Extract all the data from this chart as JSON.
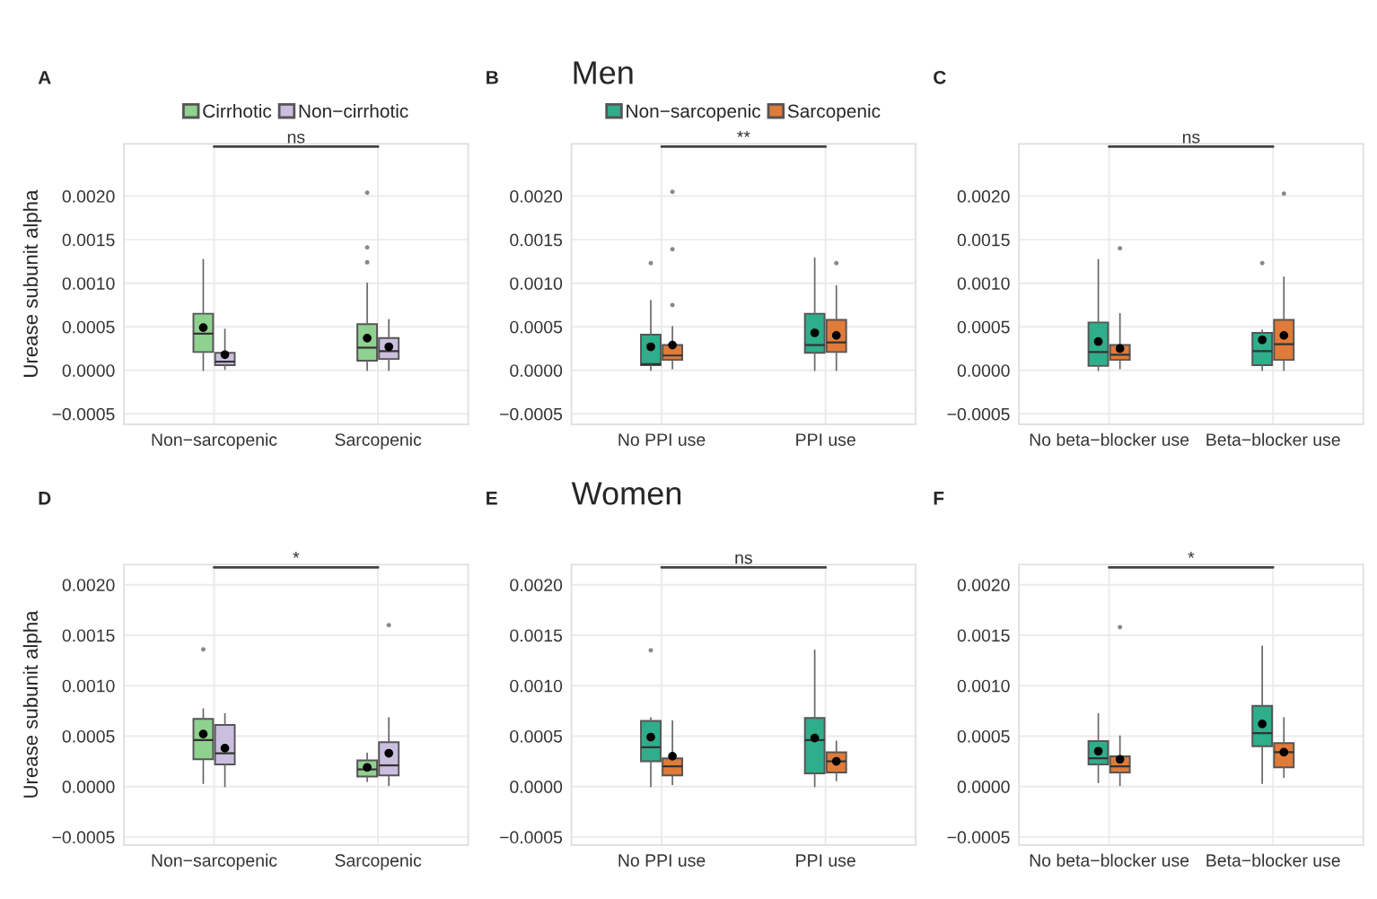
{
  "chart_data": [
    {
      "type": "box",
      "ylabel": "Urease subunit alpha",
      "categories": [
        "Non−sarcopenic",
        "Sarcopenic"
      ],
      "ylim": [
        -0.00062,
        0.0026
      ],
      "yticks": [
        {
          "value": -0.0005,
          "label": "−0.0005"
        },
        {
          "value": 0,
          "label": "0.0000"
        },
        {
          "value": 0.0005,
          "label": "0.0005"
        },
        {
          "value": 0.001,
          "label": "0.0010"
        },
        {
          "value": 0.0015,
          "label": "0.0015"
        },
        {
          "value": 0.002,
          "label": "0.0020"
        }
      ],
      "grid": true,
      "legend": "top",
      "annotations": [
        "A",
        "ns"
      ],
      "series": [
        {
          "name": "Cirrhotic",
          "color": "#8fd18f",
          "boxes": [
            {
              "low": 0.0,
              "q1": 0.00021,
              "median": 0.00042,
              "q3": 0.00065,
              "high": 0.00127,
              "mean": 0.00049
            },
            {
              "low": 0.0,
              "q1": 0.00011,
              "median": 0.00026,
              "q3": 0.00053,
              "high": 0.001,
              "mean": 0.00037,
              "outliers": [
                0.00204,
                0.00141,
                0.00124
              ]
            }
          ]
        },
        {
          "name": "Non−cirrhotic",
          "color": "#cbbfe0",
          "boxes": [
            {
              "low": 1e-05,
              "q1": 6e-05,
              "median": 0.0001,
              "q3": 0.0002,
              "high": 0.00047,
              "mean": 0.00018
            },
            {
              "low": 0.0,
              "q1": 0.00013,
              "median": 0.00022,
              "q3": 0.00037,
              "high": 0.00058,
              "mean": 0.00027
            }
          ]
        }
      ]
    },
    {
      "type": "box",
      "title": "Men",
      "categories": [
        "No PPI use",
        "PPI use"
      ],
      "ylim": [
        -0.00062,
        0.0026
      ],
      "yticks": [
        {
          "value": -0.0005,
          "label": "−0.0005"
        },
        {
          "value": 0,
          "label": "0.0000"
        },
        {
          "value": 0.0005,
          "label": "0.0005"
        },
        {
          "value": 0.001,
          "label": "0.0010"
        },
        {
          "value": 0.0015,
          "label": "0.0015"
        },
        {
          "value": 0.002,
          "label": "0.0020"
        }
      ],
      "grid": true,
      "legend": "top",
      "annotations": [
        "B",
        "**"
      ],
      "series": [
        {
          "name": "Non−sarcopenic",
          "color": "#2eae8a",
          "boxes": [
            {
              "low": 0.0,
              "q1": 6e-05,
              "median": 7e-05,
              "q3": 0.00041,
              "high": 0.0008,
              "mean": 0.00027,
              "outliers": [
                0.00123
              ]
            },
            {
              "low": 0.0,
              "q1": 0.0002,
              "median": 0.00029,
              "q3": 0.00065,
              "high": 0.00129,
              "mean": 0.00043
            }
          ]
        },
        {
          "name": "Sarcopenic",
          "color": "#e07b39",
          "boxes": [
            {
              "low": 2e-05,
              "q1": 0.00012,
              "median": 0.00017,
              "q3": 0.00029,
              "high": 0.0005,
              "mean": 0.00029,
              "outliers": [
                0.00205,
                0.00139,
                0.00075
              ]
            },
            {
              "low": 0.0,
              "q1": 0.00021,
              "median": 0.00032,
              "q3": 0.00058,
              "high": 0.00097,
              "mean": 0.0004,
              "outliers": [
                0.00123
              ]
            }
          ]
        }
      ]
    },
    {
      "type": "box",
      "categories": [
        "No beta−blocker use",
        "Beta−blocker use"
      ],
      "ylim": [
        -0.00062,
        0.0026
      ],
      "yticks": [
        {
          "value": -0.0005,
          "label": "−0.0005"
        },
        {
          "value": 0,
          "label": "0.0000"
        },
        {
          "value": 0.0005,
          "label": "0.0005"
        },
        {
          "value": 0.001,
          "label": "0.0010"
        },
        {
          "value": 0.0015,
          "label": "0.0015"
        },
        {
          "value": 0.002,
          "label": "0.0020"
        }
      ],
      "grid": true,
      "annotations": [
        "C",
        "ns"
      ],
      "series": [
        {
          "color": "#2eae8a",
          "boxes": [
            {
              "low": 0.0,
              "q1": 5e-05,
              "median": 0.00021,
              "q3": 0.00055,
              "high": 0.00127,
              "mean": 0.00033
            },
            {
              "low": 0.0,
              "q1": 6e-05,
              "median": 0.00022,
              "q3": 0.00043,
              "high": 0.00046,
              "mean": 0.00035,
              "outliers": [
                0.00123
              ]
            }
          ]
        },
        {
          "color": "#e07b39",
          "boxes": [
            {
              "low": 2e-05,
              "q1": 0.00012,
              "median": 0.00018,
              "q3": 0.00029,
              "high": 0.00065,
              "mean": 0.00025,
              "outliers": [
                0.0014
              ]
            },
            {
              "low": 0.0,
              "q1": 0.00012,
              "median": 0.0003,
              "q3": 0.00058,
              "high": 0.00107,
              "mean": 0.0004,
              "outliers": [
                0.00203
              ]
            }
          ]
        }
      ]
    },
    {
      "type": "box",
      "ylabel": "Urease subunit alpha",
      "categories": [
        "Non−sarcopenic",
        "Sarcopenic"
      ],
      "ylim": [
        -0.00058,
        0.0022
      ],
      "yticks": [
        {
          "value": -0.0005,
          "label": "−0.0005"
        },
        {
          "value": 0,
          "label": "0.0000"
        },
        {
          "value": 0.0005,
          "label": "0.0005"
        },
        {
          "value": 0.001,
          "label": "0.0010"
        },
        {
          "value": 0.0015,
          "label": "0.0015"
        },
        {
          "value": 0.002,
          "label": "0.0020"
        }
      ],
      "grid": true,
      "annotations": [
        "D",
        "*"
      ],
      "series": [
        {
          "color": "#8fd18f",
          "boxes": [
            {
              "low": 3e-05,
              "q1": 0.00027,
              "median": 0.00046,
              "q3": 0.00067,
              "high": 0.00077,
              "mean": 0.00052,
              "outliers": [
                0.00136
              ]
            },
            {
              "low": 5e-05,
              "q1": 0.0001,
              "median": 0.00017,
              "q3": 0.00026,
              "high": 0.00033,
              "mean": 0.00019
            }
          ]
        },
        {
          "color": "#cbbfe0",
          "boxes": [
            {
              "low": 0.0,
              "q1": 0.00022,
              "median": 0.00033,
              "q3": 0.00061,
              "high": 0.00072,
              "mean": 0.00038
            },
            {
              "low": 1e-05,
              "q1": 0.00011,
              "median": 0.00021,
              "q3": 0.00044,
              "high": 0.00068,
              "mean": 0.00033,
              "outliers": [
                0.0016
              ]
            }
          ]
        }
      ]
    },
    {
      "type": "box",
      "title": "Women",
      "categories": [
        "No PPI use",
        "PPI use"
      ],
      "ylim": [
        -0.00058,
        0.0022
      ],
      "yticks": [
        {
          "value": -0.0005,
          "label": "−0.0005"
        },
        {
          "value": 0,
          "label": "0.0000"
        },
        {
          "value": 0.0005,
          "label": "0.0005"
        },
        {
          "value": 0.001,
          "label": "0.0010"
        },
        {
          "value": 0.0015,
          "label": "0.0015"
        },
        {
          "value": 0.002,
          "label": "0.0020"
        }
      ],
      "grid": true,
      "annotations": [
        "E",
        "ns"
      ],
      "series": [
        {
          "color": "#2eae8a",
          "boxes": [
            {
              "low": 0.0,
              "q1": 0.00025,
              "median": 0.00039,
              "q3": 0.00065,
              "high": 0.00068,
              "mean": 0.00049,
              "outliers": [
                0.00135
              ]
            },
            {
              "low": 0.0,
              "q1": 0.00013,
              "median": 0.00046,
              "q3": 0.00068,
              "high": 0.00135,
              "mean": 0.00048
            }
          ]
        },
        {
          "color": "#e07b39",
          "boxes": [
            {
              "low": 2e-05,
              "q1": 0.00011,
              "median": 0.0002,
              "q3": 0.00028,
              "high": 0.00065,
              "mean": 0.0003
            },
            {
              "low": 6e-05,
              "q1": 0.00014,
              "median": 0.00025,
              "q3": 0.00034,
              "high": 0.00045,
              "mean": 0.00025
            }
          ]
        }
      ]
    },
    {
      "type": "box",
      "categories": [
        "No beta−blocker use",
        "Beta−blocker use"
      ],
      "ylim": [
        -0.00058,
        0.0022
      ],
      "yticks": [
        {
          "value": -0.0005,
          "label": "−0.0005"
        },
        {
          "value": 0,
          "label": "0.0000"
        },
        {
          "value": 0.0005,
          "label": "0.0005"
        },
        {
          "value": 0.001,
          "label": "0.0010"
        },
        {
          "value": 0.0015,
          "label": "0.0015"
        },
        {
          "value": 0.002,
          "label": "0.0020"
        }
      ],
      "grid": true,
      "annotations": [
        "F",
        "*"
      ],
      "series": [
        {
          "color": "#2eae8a",
          "boxes": [
            {
              "low": 4e-05,
              "q1": 0.00022,
              "median": 0.00028,
              "q3": 0.00045,
              "high": 0.00072,
              "mean": 0.00035
            },
            {
              "low": 3e-05,
              "q1": 0.0004,
              "median": 0.00053,
              "q3": 0.0008,
              "high": 0.00139,
              "mean": 0.00062
            }
          ]
        },
        {
          "color": "#e07b39",
          "boxes": [
            {
              "low": 1e-05,
              "q1": 0.00014,
              "median": 0.0002,
              "q3": 0.0003,
              "high": 0.0005,
              "mean": 0.00027,
              "outliers": [
                0.00158
              ]
            },
            {
              "low": 9e-05,
              "q1": 0.00019,
              "median": 0.00034,
              "q3": 0.00043,
              "high": 0.00068,
              "mean": 0.00034
            }
          ]
        }
      ]
    }
  ]
}
